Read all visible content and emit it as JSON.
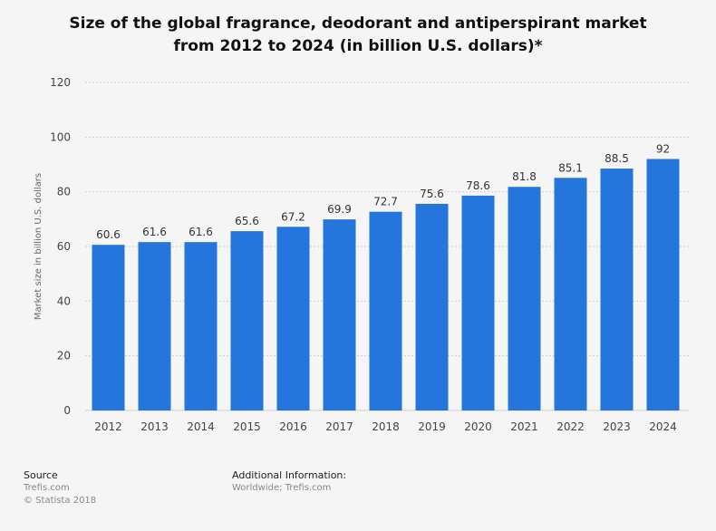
{
  "title_line1": "Size of the global fragrance, deodorant and antiperspirant market",
  "title_line2": "from 2012 to 2024 (in billion U.S. dollars)*",
  "footer": {
    "source_heading": "Source",
    "source_name": "Trefis.com",
    "copyright": "© Statista 2018",
    "info_heading": "Additional Information:",
    "info_text": "Worldwide; Trefis.com"
  },
  "colors": {
    "bar": "#2576dc",
    "grid": "#cfcfcf",
    "background": "#f5f5f5"
  },
  "chart_data": {
    "type": "bar",
    "title": "Size of the global fragrance, deodorant and antiperspirant market from 2012 to 2024 (in billion U.S. dollars)*",
    "xlabel": "",
    "ylabel": "Market size in billion U.S. dollars",
    "categories": [
      "2012",
      "2013",
      "2014",
      "2015",
      "2016",
      "2017",
      "2018",
      "2019",
      "2020",
      "2021",
      "2022",
      "2023",
      "2024"
    ],
    "values": [
      60.6,
      61.6,
      61.6,
      65.6,
      67.2,
      69.9,
      72.7,
      75.6,
      78.6,
      81.8,
      85.1,
      88.5,
      92
    ],
    "value_labels": [
      "60.6",
      "61.6",
      "61.6",
      "65.6",
      "67.2",
      "69.9",
      "72.7",
      "75.6",
      "78.6",
      "81.8",
      "85.1",
      "88.5",
      "92"
    ],
    "ylim": [
      0,
      120
    ],
    "yticks": [
      0,
      20,
      40,
      60,
      80,
      100,
      120
    ],
    "ytick_labels": [
      "0",
      "20",
      "40",
      "60",
      "80",
      "100",
      "120"
    ],
    "grid": true,
    "legend": "none"
  }
}
